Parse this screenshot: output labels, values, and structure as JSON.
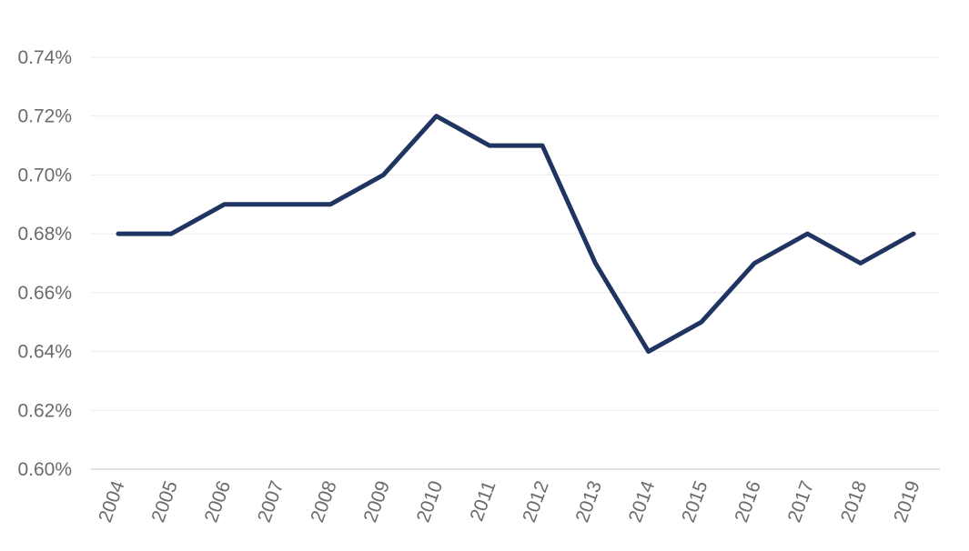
{
  "chart_data": {
    "type": "line",
    "title": "",
    "xlabel": "",
    "ylabel": "",
    "categories": [
      "2004",
      "2005",
      "2006",
      "2007",
      "2008",
      "2009",
      "2010",
      "2011",
      "2012",
      "2013",
      "2014",
      "2015",
      "2016",
      "2017",
      "2018",
      "2019"
    ],
    "series": [
      {
        "values": [
          0.68,
          0.68,
          0.69,
          0.69,
          0.69,
          0.7,
          0.72,
          0.71,
          0.71,
          0.67,
          0.64,
          0.65,
          0.67,
          0.68,
          0.67,
          0.68
        ],
        "color": "#1f3461"
      }
    ],
    "ylim": [
      0.6,
      0.74
    ],
    "y_ticks": [
      0.6,
      0.62,
      0.64,
      0.66,
      0.68,
      0.7,
      0.72,
      0.74
    ],
    "y_tick_labels": [
      "0.60%",
      "0.62%",
      "0.64%",
      "0.66%",
      "0.68%",
      "0.70%",
      "0.72%",
      "0.74%"
    ],
    "value_unit": "%",
    "grid": true,
    "legend": "none"
  }
}
